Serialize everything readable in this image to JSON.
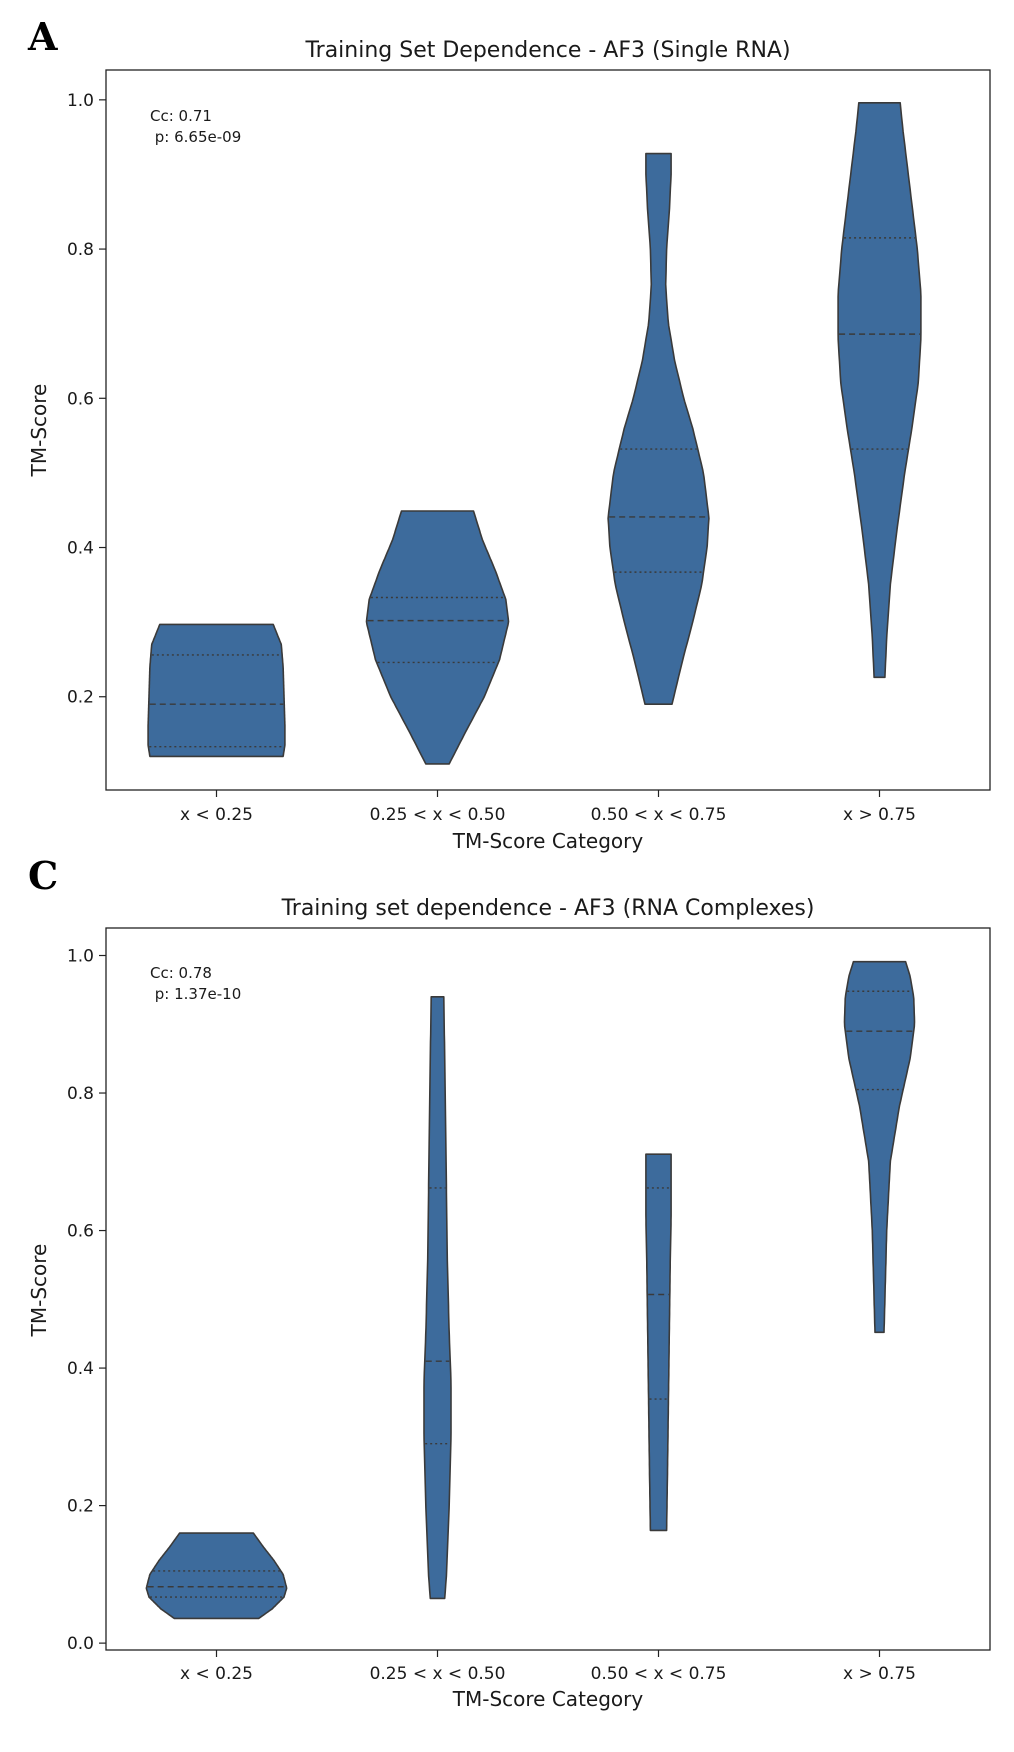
{
  "chart_data": [
    {
      "panel": "A",
      "type": "violin",
      "title": "Training Set Dependence - AF3 (Single RNA)",
      "xlabel": "TM-Score Category",
      "ylabel": "TM-Score",
      "categories": [
        "x < 0.25",
        "0.25 < x < 0.50",
        "0.50 < x < 0.75",
        "x > 0.75"
      ],
      "ylim": [
        0.075,
        1.04
      ],
      "yticks": [
        0.2,
        0.4,
        0.6,
        0.8,
        1.0
      ],
      "ytick_labels": [
        "0.2",
        "0.4",
        "0.6",
        "0.8",
        "1.0"
      ],
      "annotation_lines": [
        "Cc: 0.71",
        " p: 6.65e-09"
      ],
      "color": "#3d6b9c",
      "violins": [
        {
          "category": "x < 0.25",
          "min": 0.12,
          "max": 0.297,
          "q1": 0.133,
          "median": 0.19,
          "q3": 0.256,
          "profile": [
            [
              0.12,
              0.74
            ],
            [
              0.135,
              0.76
            ],
            [
              0.16,
              0.76
            ],
            [
              0.2,
              0.75
            ],
            [
              0.24,
              0.74
            ],
            [
              0.27,
              0.72
            ],
            [
              0.297,
              0.63
            ]
          ]
        },
        {
          "category": "0.25 < x < 0.50",
          "min": 0.11,
          "max": 0.449,
          "q1": 0.246,
          "median": 0.302,
          "q3": 0.333,
          "profile": [
            [
              0.11,
              0.13
            ],
            [
              0.15,
              0.3
            ],
            [
              0.2,
              0.52
            ],
            [
              0.25,
              0.69
            ],
            [
              0.3,
              0.79
            ],
            [
              0.33,
              0.76
            ],
            [
              0.37,
              0.64
            ],
            [
              0.41,
              0.5
            ],
            [
              0.449,
              0.4
            ]
          ]
        },
        {
          "category": "0.50 < x < 0.75",
          "min": 0.19,
          "max": 0.928,
          "q1": 0.367,
          "median": 0.441,
          "q3": 0.532,
          "profile": [
            [
              0.19,
              0.15
            ],
            [
              0.25,
              0.27
            ],
            [
              0.3,
              0.38
            ],
            [
              0.35,
              0.48
            ],
            [
              0.4,
              0.54
            ],
            [
              0.44,
              0.56
            ],
            [
              0.5,
              0.5
            ],
            [
              0.56,
              0.38
            ],
            [
              0.6,
              0.28
            ],
            [
              0.65,
              0.18
            ],
            [
              0.7,
              0.11
            ],
            [
              0.75,
              0.08
            ],
            [
              0.8,
              0.09
            ],
            [
              0.85,
              0.12
            ],
            [
              0.9,
              0.14
            ],
            [
              0.928,
              0.14
            ]
          ]
        },
        {
          "category": "x > 0.75",
          "min": 0.226,
          "max": 0.996,
          "q1": 0.532,
          "median": 0.686,
          "q3": 0.815,
          "profile": [
            [
              0.226,
              0.06
            ],
            [
              0.28,
              0.08
            ],
            [
              0.35,
              0.12
            ],
            [
              0.42,
              0.19
            ],
            [
              0.5,
              0.28
            ],
            [
              0.56,
              0.36
            ],
            [
              0.62,
              0.43
            ],
            [
              0.68,
              0.46
            ],
            [
              0.74,
              0.46
            ],
            [
              0.8,
              0.42
            ],
            [
              0.86,
              0.36
            ],
            [
              0.92,
              0.3
            ],
            [
              0.96,
              0.26
            ],
            [
              0.996,
              0.23
            ]
          ]
        }
      ]
    },
    {
      "panel": "C",
      "type": "violin",
      "title": "Training set dependence - AF3 (RNA Complexes)",
      "xlabel": "TM-Score Category",
      "ylabel": "TM-Score",
      "categories": [
        "x < 0.25",
        "0.25 < x < 0.50",
        "0.50 < x < 0.75",
        "x > 0.75"
      ],
      "ylim": [
        -0.01,
        1.04
      ],
      "yticks": [
        0.0,
        0.2,
        0.4,
        0.6,
        0.8,
        1.0
      ],
      "ytick_labels": [
        "0.0",
        "0.2",
        "0.4",
        "0.6",
        "0.8",
        "1.0"
      ],
      "annotation_lines": [
        "Cc: 0.78",
        " p: 1.37e-10"
      ],
      "color": "#3d6b9c",
      "violins": [
        {
          "category": "x < 0.25",
          "min": 0.036,
          "max": 0.16,
          "q1": 0.067,
          "median": 0.082,
          "q3": 0.105,
          "profile": [
            [
              0.036,
              0.47
            ],
            [
              0.05,
              0.62
            ],
            [
              0.067,
              0.75
            ],
            [
              0.08,
              0.78
            ],
            [
              0.1,
              0.74
            ],
            [
              0.12,
              0.64
            ],
            [
              0.14,
              0.52
            ],
            [
              0.16,
              0.41
            ]
          ]
        },
        {
          "category": "0.25 < x < 0.50",
          "min": 0.065,
          "max": 0.94,
          "q1": 0.29,
          "median": 0.41,
          "q3": 0.662,
          "profile": [
            [
              0.065,
              0.08
            ],
            [
              0.1,
              0.1
            ],
            [
              0.2,
              0.13
            ],
            [
              0.3,
              0.15
            ],
            [
              0.38,
              0.15
            ],
            [
              0.45,
              0.13
            ],
            [
              0.55,
              0.11
            ],
            [
              0.65,
              0.1
            ],
            [
              0.75,
              0.09
            ],
            [
              0.85,
              0.08
            ],
            [
              0.94,
              0.07
            ]
          ]
        },
        {
          "category": "0.50 < x < 0.75",
          "min": 0.164,
          "max": 0.711,
          "q1": 0.355,
          "median": 0.507,
          "q3": 0.662,
          "profile": [
            [
              0.164,
              0.09
            ],
            [
              0.25,
              0.1
            ],
            [
              0.35,
              0.11
            ],
            [
              0.45,
              0.12
            ],
            [
              0.55,
              0.13
            ],
            [
              0.62,
              0.14
            ],
            [
              0.68,
              0.14
            ],
            [
              0.711,
              0.14
            ]
          ]
        },
        {
          "category": "x > 0.75",
          "min": 0.452,
          "max": 0.991,
          "q1": 0.805,
          "median": 0.89,
          "q3": 0.948,
          "profile": [
            [
              0.452,
              0.05
            ],
            [
              0.5,
              0.06
            ],
            [
              0.6,
              0.08
            ],
            [
              0.7,
              0.12
            ],
            [
              0.78,
              0.22
            ],
            [
              0.85,
              0.34
            ],
            [
              0.9,
              0.39
            ],
            [
              0.94,
              0.38
            ],
            [
              0.97,
              0.34
            ],
            [
              0.991,
              0.29
            ]
          ]
        }
      ]
    }
  ]
}
